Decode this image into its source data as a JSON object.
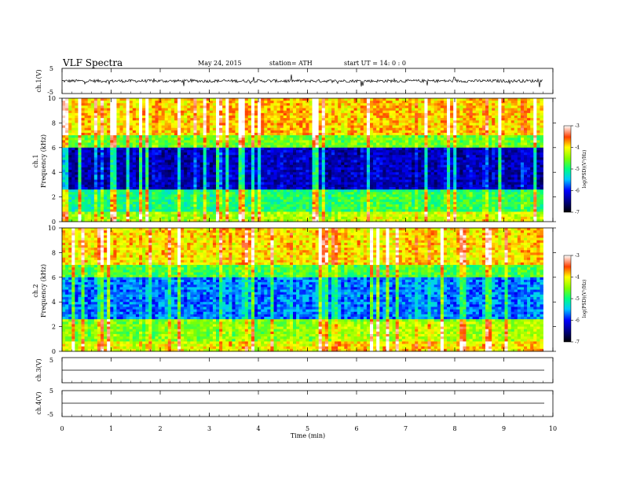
{
  "header": {
    "title": "VLF  Spectra",
    "date": "May 24, 2015",
    "station": "station= ATH",
    "start": "start  UT  =    14: 0  : 0"
  },
  "chart_data": [
    {
      "type": "line",
      "panel": "ch1-waveform",
      "ylabel": "ch.1(V)",
      "ylim": [
        -5,
        5
      ],
      "ticks": [
        "5",
        "-5"
      ],
      "series": [
        {
          "values_desc": [],
          "mean": 0,
          "amplitude": 0.6
        }
      ]
    },
    {
      "type": "heatmap",
      "panel": "ch1-spectrogram",
      "ylabel": "ch.1\nFrequency  (kHz)",
      "ylim": [
        0,
        10
      ],
      "yticks": [
        "0",
        "2",
        "4",
        "6",
        "8",
        "10"
      ],
      "colorbar": {
        "label": "log(PSD)(V²/Hz)",
        "range": [
          -7,
          -3
        ],
        "ticks": [
          "-3",
          "-4",
          "-5",
          "-6",
          "-7"
        ],
        "colormap": "jet"
      }
    },
    {
      "type": "heatmap",
      "panel": "ch2-spectrogram",
      "ylabel": "ch.2\nFrequency  (kHz)",
      "ylim": [
        0,
        10
      ],
      "yticks": [
        "0",
        "2",
        "4",
        "6",
        "8",
        "10"
      ],
      "colorbar": {
        "label": "log(PSD)(V²/Hz)",
        "range": [
          -7,
          -3
        ],
        "ticks": [
          "-3",
          "-4",
          "-5",
          "-6",
          "-7"
        ],
        "colormap": "jet"
      }
    },
    {
      "type": "line",
      "panel": "ch3-waveform",
      "ylabel": "ch.3(V)",
      "ylim": [
        -5,
        5
      ],
      "ticks": [
        "5"
      ],
      "series": [
        {
          "mean": 0,
          "amplitude": 0
        }
      ]
    },
    {
      "type": "line",
      "panel": "ch4-waveform",
      "ylabel": "ch.4(V)",
      "ylim": [
        -5,
        5
      ],
      "ticks": [
        "5",
        "-5"
      ],
      "series": [
        {
          "mean": 0,
          "amplitude": 0
        }
      ]
    }
  ],
  "xaxis": {
    "label": "Time  (min)",
    "xlim": [
      0,
      10
    ],
    "ticks": [
      "0",
      "1",
      "2",
      "3",
      "4",
      "5",
      "6",
      "7",
      "8",
      "9",
      "10"
    ],
    "data_end": 9.8
  },
  "colors": {
    "axis": "#000000",
    "background": "#ffffff"
  }
}
